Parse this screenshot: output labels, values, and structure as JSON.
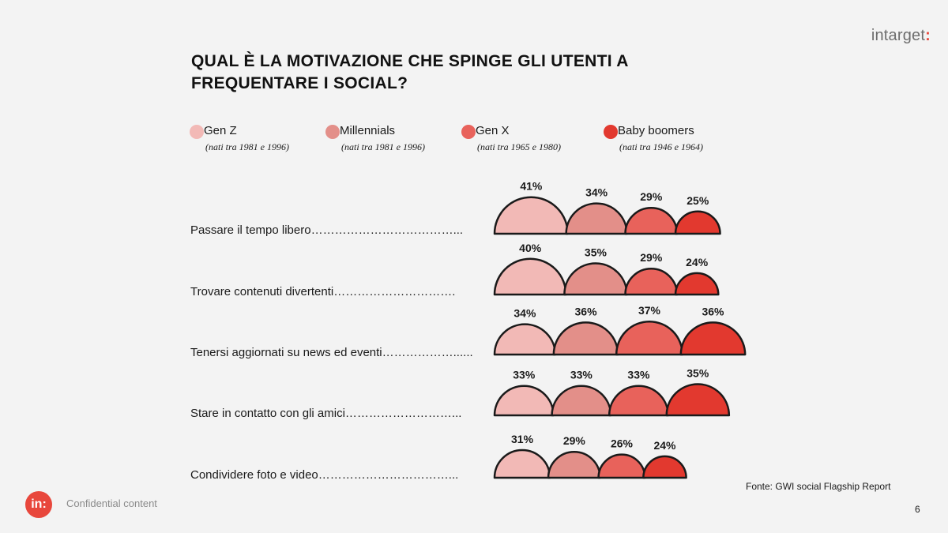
{
  "brand": {
    "name": "intarget",
    "suffix": ":"
  },
  "title": "QUAL È LA MOTIVAZIONE CHE SPINGE GLI UTENTI A FREQUENTARE I SOCIAL?",
  "legend": [
    {
      "label": "Gen Z",
      "sub": "(nati tra 1981 e 1996)"
    },
    {
      "label": "Millennials",
      "sub": "(nati tra 1981 e 1996)"
    },
    {
      "label": "Gen X",
      "sub": "(nati tra 1965 e 1980)"
    },
    {
      "label": "Baby boomers",
      "sub": "(nati tra 1946 e 1964)"
    }
  ],
  "rows": [
    {
      "label": "Passare il tempo libero………………………………..."
    },
    {
      "label": "Trovare contenuti divertenti…………………………."
    },
    {
      "label": "Tenersi aggiornati su news ed eventi………………......"
    },
    {
      "label": "Stare in contatto con gli amici………………………..."
    },
    {
      "label": "Condividere foto e video……………………………..."
    }
  ],
  "chart_data": {
    "type": "bar",
    "title": "QUAL È LA MOTIVAZIONE CHE SPINGE GLI UTENTI A FREQUENTARE I SOCIAL?",
    "categories": [
      "Passare il tempo libero",
      "Trovare contenuti divertenti",
      "Tenersi aggiornati su news ed eventi",
      "Stare in contatto con gli amici",
      "Condividere foto e video"
    ],
    "series": [
      {
        "name": "Gen Z",
        "color": "#f2b9b6",
        "values": [
          41,
          40,
          34,
          33,
          31
        ]
      },
      {
        "name": "Millennials",
        "color": "#e38f89",
        "values": [
          34,
          35,
          36,
          33,
          29
        ]
      },
      {
        "name": "Gen X",
        "color": "#e8625b",
        "values": [
          29,
          29,
          37,
          33,
          26
        ]
      },
      {
        "name": "Baby boomers",
        "color": "#e2392f",
        "values": [
          25,
          24,
          36,
          35,
          24
        ]
      }
    ],
    "value_suffix": "%",
    "xlabel": "",
    "ylabel": "",
    "legend_position": "top"
  },
  "source": "Fonte: GWI social Flagship Report",
  "page_number": "6",
  "footer": {
    "logo_text": "in:",
    "text": "Confidential content"
  }
}
